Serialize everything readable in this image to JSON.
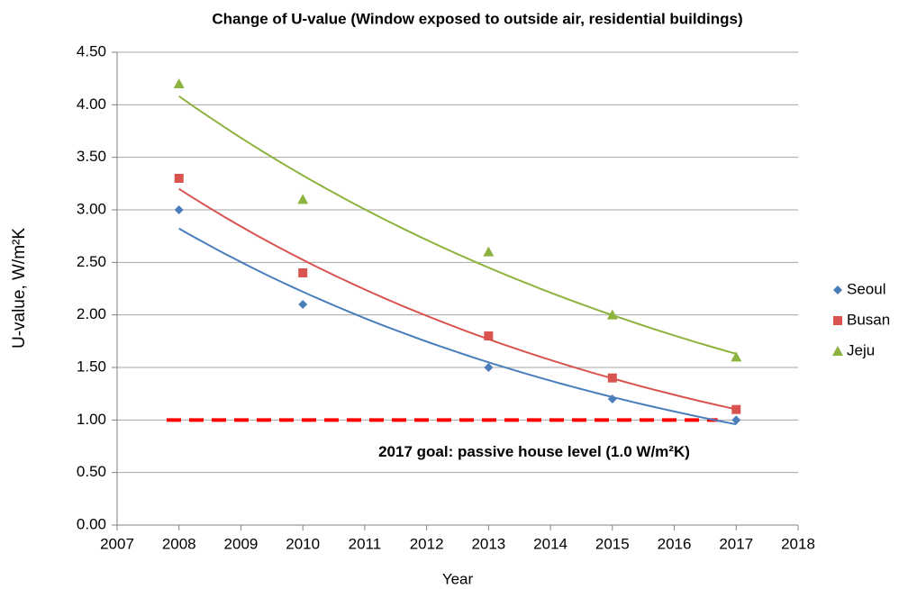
{
  "chart_data": {
    "type": "scatter",
    "title": "Change of U-value (Window exposed to outside air, residential buildings)",
    "x_label": "Year",
    "y_label": "U-value, W/m²K",
    "series": [
      {
        "name": "Seoul",
        "color": "#4a7ebb",
        "marker": "diamond",
        "x": [
          2008,
          2010,
          2013,
          2015,
          2017
        ],
        "values": [
          3.0,
          2.1,
          1.5,
          1.2,
          1.0
        ]
      },
      {
        "name": "Busan",
        "color": "#d9534f",
        "marker": "square",
        "x": [
          2008,
          2010,
          2013,
          2015,
          2017
        ],
        "values": [
          3.3,
          2.4,
          1.8,
          1.4,
          1.1
        ]
      },
      {
        "name": "Jeju",
        "color": "#8db33f",
        "marker": "triangle",
        "x": [
          2008,
          2010,
          2013,
          2015,
          2017
        ],
        "values": [
          4.2,
          3.1,
          2.6,
          2.0,
          1.6
        ]
      }
    ],
    "trendline": "exponential",
    "goal_line": {
      "value": 1.0,
      "x_range": [
        2007.8,
        2016.7
      ],
      "color": "#ff0000",
      "label": "2017 goal: passive house level (1.0 W/m²K)"
    },
    "xlim": [
      2007,
      2018
    ],
    "xticks": [
      2007,
      2008,
      2009,
      2010,
      2011,
      2012,
      2013,
      2014,
      2015,
      2016,
      2017,
      2018
    ],
    "ylim": [
      0,
      4.5
    ],
    "yticks": [
      {
        "value": 0,
        "label": "0.00"
      },
      {
        "value": 0.5,
        "label": "0.50"
      },
      {
        "value": 1,
        "label": "1.00"
      },
      {
        "value": 1.5,
        "label": "1.50"
      },
      {
        "value": 2,
        "label": "2.00"
      },
      {
        "value": 2.5,
        "label": "2.50"
      },
      {
        "value": 3,
        "label": "3.00"
      },
      {
        "value": 3.5,
        "label": "3.50"
      },
      {
        "value": 4,
        "label": "4.00"
      },
      {
        "value": 4.5,
        "label": "4.50"
      }
    ],
    "grid": true,
    "legend": "right"
  }
}
